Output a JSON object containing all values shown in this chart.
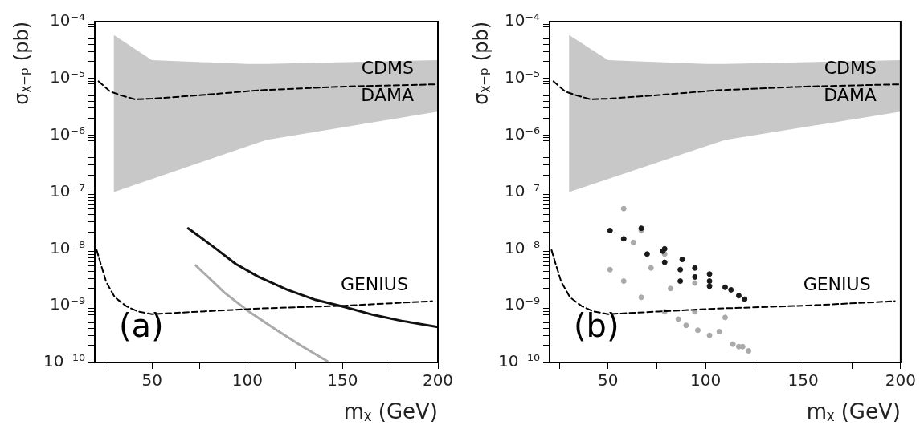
{
  "chart_data": [
    {
      "type": "line",
      "ylabel": "σᵪ₋ₚ (pb)",
      "xlabel": "mᵪ (GeV)",
      "xlim": [
        20,
        200
      ],
      "ylim": [
        1e-10,
        0.0001
      ],
      "log": "y",
      "xticks": [
        {
          "value": 25,
          "label": null
        },
        50,
        {
          "value": 75,
          "label": null
        },
        100,
        {
          "value": 125,
          "label": null
        },
        150,
        {
          "value": 175,
          "label": null
        },
        200
      ],
      "yticks": [
        {
          "value": 1e-10,
          "label": "10⁻¹⁰"
        },
        {
          "value": 2e-10,
          "label": null
        },
        {
          "value": 3e-10,
          "label": null
        },
        {
          "value": 4e-10,
          "label": null
        },
        {
          "value": 5e-10,
          "label": null
        },
        {
          "value": 6e-10,
          "label": null
        },
        {
          "value": 7e-10,
          "label": null
        },
        {
          "value": 8e-10,
          "label": null
        },
        {
          "value": 9e-10,
          "label": null
        },
        {
          "value": 1e-09,
          "label": "10⁻⁹"
        },
        {
          "value": 2e-09,
          "label": null
        },
        {
          "value": 3e-09,
          "label": null
        },
        {
          "value": 4e-09,
          "label": null
        },
        {
          "value": 5e-09,
          "label": null
        },
        {
          "value": 6e-09,
          "label": null
        },
        {
          "value": 7e-09,
          "label": null
        },
        {
          "value": 8e-09,
          "label": null
        },
        {
          "value": 9e-09,
          "label": null
        },
        {
          "value": 1e-08,
          "label": "10⁻⁸"
        },
        {
          "value": 2e-08,
          "label": null
        },
        {
          "value": 3e-08,
          "label": null
        },
        {
          "value": 4e-08,
          "label": null
        },
        {
          "value": 5e-08,
          "label": null
        },
        {
          "value": 6e-08,
          "label": null
        },
        {
          "value": 7e-08,
          "label": null
        },
        {
          "value": 8e-08,
          "label": null
        },
        {
          "value": 9e-08,
          "label": null
        },
        {
          "value": 1e-07,
          "label": "10⁻⁷"
        },
        {
          "value": 2e-07,
          "label": null
        },
        {
          "value": 3e-07,
          "label": null
        },
        {
          "value": 4e-07,
          "label": null
        },
        {
          "value": 5e-07,
          "label": null
        },
        {
          "value": 6e-07,
          "label": null
        },
        {
          "value": 7e-07,
          "label": null
        },
        {
          "value": 8e-07,
          "label": null
        },
        {
          "value": 9e-07,
          "label": null
        },
        {
          "value": 1e-06,
          "label": "10⁻⁶"
        },
        {
          "value": 2e-06,
          "label": null
        },
        {
          "value": 3e-06,
          "label": null
        },
        {
          "value": 4e-06,
          "label": null
        },
        {
          "value": 5e-06,
          "label": null
        },
        {
          "value": 6e-06,
          "label": null
        },
        {
          "value": 7e-06,
          "label": null
        },
        {
          "value": 8e-06,
          "label": null
        },
        {
          "value": 9e-06,
          "label": null
        },
        {
          "value": 1e-05,
          "label": "10⁻⁵"
        },
        {
          "value": 2e-05,
          "label": null
        },
        {
          "value": 3e-05,
          "label": null
        },
        {
          "value": 4e-05,
          "label": null
        },
        {
          "value": 5e-05,
          "label": null
        },
        {
          "value": 6e-05,
          "label": null
        },
        {
          "value": 7e-05,
          "label": null
        },
        {
          "value": 8e-05,
          "label": null
        },
        {
          "value": 9e-05,
          "label": null
        },
        {
          "value": 0.0001,
          "label": "10⁻⁴"
        }
      ],
      "series": [
        {
          "type": "area",
          "color": "#c8c8c8",
          "x": [
            30,
            50,
            100,
            110,
            200
          ],
          "values": [
            null,
            null,
            null,
            null,
            null
          ],
          "upper": [
            5.8e-05,
            2.1e-05,
            1.8e-05,
            1.8e-05,
            2.1e-05
          ],
          "lower": [
            1e-07,
            1.7e-07,
            6.4e-07,
            8.3e-07,
            2.6e-06
          ]
        },
        {
          "name": "CDMS",
          "color": "#000000",
          "line_style": "dashed",
          "x": [
            22,
            28,
            34,
            41,
            50,
            76,
            106,
            151,
            200
          ],
          "values": [
            8.9e-06,
            5.9e-06,
            5e-06,
            4.3e-06,
            4.4e-06,
            5.1e-06,
            6.2e-06,
            7.2e-06,
            7.9e-06
          ]
        },
        {
          "name": "GENIUS",
          "color": "#000000",
          "line_style": "dashed",
          "x": [
            21,
            23,
            26,
            30.5,
            36.5,
            42.6,
            50,
            76,
            106,
            151,
            197
          ],
          "values": [
            9.5e-09,
            5.6e-09,
            2.6e-09,
            1.4e-09,
            9.8e-10,
            7.9e-10,
            7.1e-10,
            7.9e-10,
            8.9e-10,
            1e-09,
            1.2e-09
          ]
        },
        {
          "color": "#111111",
          "line_style": "solid",
          "x": [
            69,
            82,
            94,
            106,
            121,
            136,
            151,
            166,
            181,
            200
          ],
          "values": [
            2.3e-08,
            1.1e-08,
            5.4e-09,
            3.2e-09,
            1.9e-09,
            1.26e-09,
            9.5e-10,
            6.9e-10,
            5.4e-10,
            4.2e-10
          ]
        },
        {
          "color": "#aaaaaa",
          "line_style": "solid",
          "x": [
            73,
            88,
            101,
            115,
            128,
            142
          ],
          "values": [
            5.1e-09,
            1.7e-09,
            7.8e-10,
            3.8e-10,
            2e-10,
            1.05e-10
          ]
        }
      ],
      "annotations": [
        "(a)",
        "DAMA"
      ]
    },
    {
      "type": "scatter",
      "ylabel": "σᵪ₋ₚ (pb)",
      "xlabel": "mᵪ (GeV)",
      "xlim": [
        20,
        200
      ],
      "ylim": [
        1e-10,
        0.0001
      ],
      "log": "y",
      "xticks": [
        {
          "value": 25,
          "label": null
        },
        50,
        {
          "value": 75,
          "label": null
        },
        100,
        {
          "value": 125,
          "label": null
        },
        150,
        {
          "value": 175,
          "label": null
        },
        200
      ],
      "yticks": [
        {
          "value": 1e-10,
          "label": "10⁻¹⁰"
        },
        {
          "value": 2e-10,
          "label": null
        },
        {
          "value": 3e-10,
          "label": null
        },
        {
          "value": 4e-10,
          "label": null
        },
        {
          "value": 5e-10,
          "label": null
        },
        {
          "value": 6e-10,
          "label": null
        },
        {
          "value": 7e-10,
          "label": null
        },
        {
          "value": 8e-10,
          "label": null
        },
        {
          "value": 9e-10,
          "label": null
        },
        {
          "value": 1e-09,
          "label": "10⁻⁹"
        },
        {
          "value": 2e-09,
          "label": null
        },
        {
          "value": 3e-09,
          "label": null
        },
        {
          "value": 4e-09,
          "label": null
        },
        {
          "value": 5e-09,
          "label": null
        },
        {
          "value": 6e-09,
          "label": null
        },
        {
          "value": 7e-09,
          "label": null
        },
        {
          "value": 8e-09,
          "label": null
        },
        {
          "value": 9e-09,
          "label": null
        },
        {
          "value": 1e-08,
          "label": "10⁻⁸"
        },
        {
          "value": 2e-08,
          "label": null
        },
        {
          "value": 3e-08,
          "label": null
        },
        {
          "value": 4e-08,
          "label": null
        },
        {
          "value": 5e-08,
          "label": null
        },
        {
          "value": 6e-08,
          "label": null
        },
        {
          "value": 7e-08,
          "label": null
        },
        {
          "value": 8e-08,
          "label": null
        },
        {
          "value": 9e-08,
          "label": null
        },
        {
          "value": 1e-07,
          "label": "10⁻⁷"
        },
        {
          "value": 2e-07,
          "label": null
        },
        {
          "value": 3e-07,
          "label": null
        },
        {
          "value": 4e-07,
          "label": null
        },
        {
          "value": 5e-07,
          "label": null
        },
        {
          "value": 6e-07,
          "label": null
        },
        {
          "value": 7e-07,
          "label": null
        },
        {
          "value": 8e-07,
          "label": null
        },
        {
          "value": 9e-07,
          "label": null
        },
        {
          "value": 1e-06,
          "label": "10⁻⁶"
        },
        {
          "value": 2e-06,
          "label": null
        },
        {
          "value": 3e-06,
          "label": null
        },
        {
          "value": 4e-06,
          "label": null
        },
        {
          "value": 5e-06,
          "label": null
        },
        {
          "value": 6e-06,
          "label": null
        },
        {
          "value": 7e-06,
          "label": null
        },
        {
          "value": 8e-06,
          "label": null
        },
        {
          "value": 9e-06,
          "label": null
        },
        {
          "value": 1e-05,
          "label": "10⁻⁵"
        },
        {
          "value": 2e-05,
          "label": null
        },
        {
          "value": 3e-05,
          "label": null
        },
        {
          "value": 4e-05,
          "label": null
        },
        {
          "value": 5e-05,
          "label": null
        },
        {
          "value": 6e-05,
          "label": null
        },
        {
          "value": 7e-05,
          "label": null
        },
        {
          "value": 8e-05,
          "label": null
        },
        {
          "value": 9e-05,
          "label": null
        },
        {
          "value": 0.0001,
          "label": "10⁻⁴"
        }
      ],
      "series": [
        {
          "type": "area",
          "color": "#c8c8c8",
          "x": [
            30,
            50,
            100,
            110,
            200
          ],
          "values": [
            null,
            null,
            null,
            null,
            null
          ],
          "upper": [
            5.8e-05,
            2.1e-05,
            1.8e-05,
            1.8e-05,
            2.1e-05
          ],
          "lower": [
            1e-07,
            1.7e-07,
            6.4e-07,
            8.3e-07,
            2.6e-06
          ]
        },
        {
          "type": "line",
          "name": "CDMS",
          "color": "#000000",
          "line_style": "dashed",
          "x": [
            22,
            28,
            34,
            41,
            50,
            76,
            106,
            151,
            200
          ],
          "values": [
            8.9e-06,
            5.9e-06,
            5e-06,
            4.3e-06,
            4.4e-06,
            5.1e-06,
            6.2e-06,
            7.2e-06,
            7.9e-06
          ]
        },
        {
          "type": "line",
          "name": "GENIUS",
          "color": "#000000",
          "line_style": "dashed",
          "x": [
            21,
            23,
            26,
            30.5,
            36.5,
            42.6,
            50,
            76,
            106,
            151,
            197
          ],
          "values": [
            9.5e-09,
            5.6e-09,
            2.6e-09,
            1.4e-09,
            9.8e-10,
            7.9e-10,
            7.1e-10,
            7.9e-10,
            8.9e-10,
            1e-09,
            1.2e-09
          ]
        },
        {
          "color": "#1a1a1a",
          "marker": "circle",
          "x": [
            67,
            79,
            94.5,
            110,
            120,
            87,
            102,
            117,
            51,
            58,
            70,
            79,
            87,
            94.5,
            102,
            78,
            88,
            102,
            113
          ],
          "values": [
            2.3e-08,
            1e-08,
            4.6e-09,
            2.1e-09,
            1.3e-09,
            2.7e-09,
            2.2e-09,
            1.5e-09,
            2.1e-08,
            1.5e-08,
            8.1e-09,
            5.8e-09,
            4.3e-09,
            3.2e-09,
            2.7e-09,
            9.1e-09,
            6.5e-09,
            3.6e-09,
            1.9e-09
          ]
        },
        {
          "color": "#aaaaaa",
          "marker": "circle",
          "x": [
            58,
            67,
            79,
            94.5,
            110,
            122,
            63,
            72,
            82,
            94.5,
            107,
            119,
            51,
            58,
            67,
            79,
            86,
            96,
            114,
            90,
            102,
            117
          ],
          "values": [
            5.1e-08,
            2.1e-08,
            8.1e-09,
            2.5e-09,
            6.2e-10,
            1.6e-10,
            1.3e-08,
            4.6e-09,
            2e-09,
            7.8e-10,
            3.5e-10,
            1.9e-10,
            4.3e-09,
            2.7e-09,
            1.4e-09,
            7.8e-10,
            5.8e-10,
            3.7e-10,
            2.1e-10,
            4.5e-10,
            3e-10,
            1.9e-10
          ]
        }
      ],
      "annotations": [
        "(b)",
        "DAMA"
      ]
    }
  ]
}
